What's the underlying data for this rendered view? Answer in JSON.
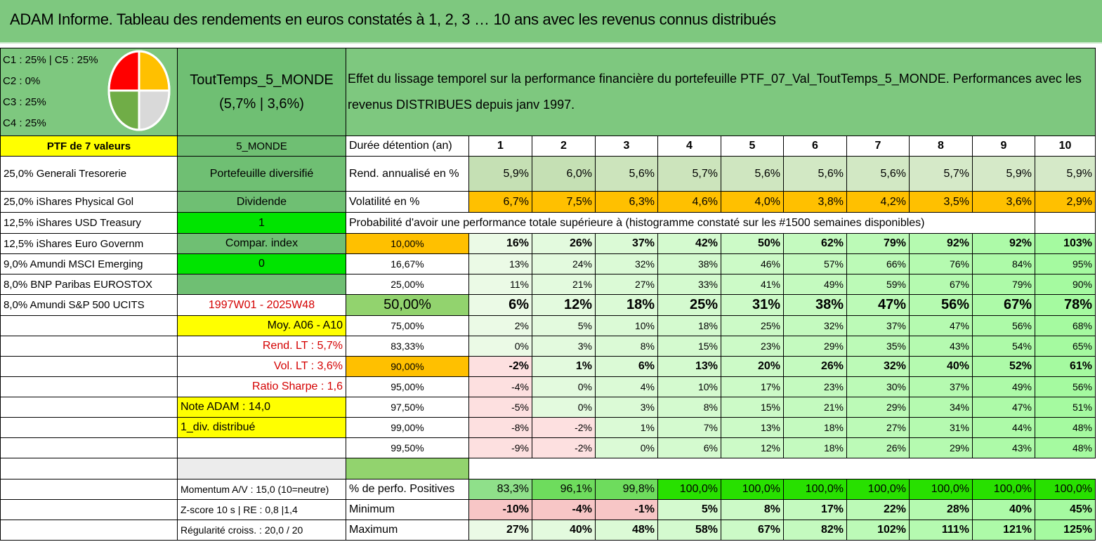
{
  "title": "ADAM Informe. Tableau des rendements en euros constatés à 1, 2, 3 … 10 ans avec les revenus connus distribués",
  "legend": [
    "C1 : 25% | C5 : 25%",
    "C2 : 0%",
    "C3 : 25%",
    "C4 : 25%"
  ],
  "pie": {
    "slices": [
      {
        "label": "C1",
        "pct": 25,
        "color": "#ffc000"
      },
      {
        "label": "C5",
        "pct": 25,
        "color": "#d9d9d9"
      },
      {
        "label": "C4",
        "pct": 25,
        "color": "#70ad47"
      },
      {
        "label": "C3",
        "pct": 25,
        "color": "#ff0000"
      }
    ]
  },
  "portfolio": {
    "name": "ToutTemps_5_MONDE",
    "stats": "(5,7% | 3,6%)"
  },
  "description": "Effet du lissage temporel sur la performance financière du portefeuille PTF_07_Val_ToutTemps_5_MONDE. Performances avec les revenus DISTRIBUES depuis janv 1997.",
  "ptf_header": "PTF de 7 valeurs",
  "holdings": [
    "25,0% Generali Tresorerie",
    "25,0% iShares Physical Gol",
    "12,5% iShares USD Treasury",
    "12,5% iShares Euro Governm",
    "9,0% Amundi MSCI Emerging",
    "8,0% BNP Paribas EUROSTOX",
    "8,0% Amundi S&P 500 UCITS"
  ],
  "info": {
    "monde": "5_MONDE",
    "diversifie": "Portefeuille diversifié",
    "dividende": "Dividende",
    "val1": "1",
    "compar": "Compar. index",
    "val0": "0",
    "period": "1997W01 - 2025W48",
    "moy": "Moy. A06 - A10",
    "rend_lt": "Rend. LT : 5,7%",
    "vol_lt": "Vol. LT : 3,6%",
    "sharpe": "Ratio Sharpe : 1,6",
    "note": "Note ADAM : 14,0",
    "div": "1_div. distribué",
    "momentum": "Momentum A/V : 15,0 (10=neutre)",
    "zscore": "Z-score 10 s | RE : 0,8 |1,4",
    "regularite": "Régularité croiss. : 20,0 / 20"
  },
  "durations_label": "Durée détention (an)",
  "durations": [
    "1",
    "2",
    "3",
    "4",
    "5",
    "6",
    "7",
    "8",
    "9",
    "10"
  ],
  "rend_label": "Rend. annualisé en %",
  "rend": [
    "5,9%",
    "6,0%",
    "5,6%",
    "5,7%",
    "5,6%",
    "5,6%",
    "5,6%",
    "5,7%",
    "5,9%",
    "5,9%"
  ],
  "vol_label": "Volatilité en %",
  "vol": [
    "6,7%",
    "7,5%",
    "6,3%",
    "4,6%",
    "4,0%",
    "3,8%",
    "4,2%",
    "3,5%",
    "3,6%",
    "2,9%"
  ],
  "prob_header": "Probabilité d'avoir une performance totale supérieure à (histogramme constaté sur les #1500 semaines disponibles)",
  "prob_rows": [
    {
      "p": "10,00%",
      "v": [
        "16%",
        "26%",
        "37%",
        "42%",
        "50%",
        "62%",
        "79%",
        "92%",
        "92%",
        "103%"
      ]
    },
    {
      "p": "16,67%",
      "v": [
        "13%",
        "24%",
        "32%",
        "38%",
        "46%",
        "57%",
        "66%",
        "76%",
        "84%",
        "95%"
      ]
    },
    {
      "p": "25,00%",
      "v": [
        "11%",
        "21%",
        "27%",
        "33%",
        "41%",
        "49%",
        "59%",
        "67%",
        "79%",
        "90%"
      ]
    },
    {
      "p": "50,00%",
      "v": [
        "6%",
        "12%",
        "18%",
        "25%",
        "31%",
        "38%",
        "47%",
        "56%",
        "67%",
        "78%"
      ]
    },
    {
      "p": "75,00%",
      "v": [
        "2%",
        "5%",
        "10%",
        "18%",
        "25%",
        "32%",
        "37%",
        "47%",
        "56%",
        "68%"
      ]
    },
    {
      "p": "83,33%",
      "v": [
        "0%",
        "3%",
        "8%",
        "15%",
        "23%",
        "29%",
        "35%",
        "43%",
        "54%",
        "65%"
      ]
    },
    {
      "p": "90,00%",
      "v": [
        "-2%",
        "1%",
        "6%",
        "13%",
        "20%",
        "26%",
        "32%",
        "40%",
        "52%",
        "61%"
      ]
    },
    {
      "p": "95,00%",
      "v": [
        "-4%",
        "0%",
        "4%",
        "10%",
        "17%",
        "23%",
        "30%",
        "37%",
        "49%",
        "56%"
      ]
    },
    {
      "p": "97,50%",
      "v": [
        "-5%",
        "0%",
        "3%",
        "8%",
        "15%",
        "21%",
        "29%",
        "34%",
        "47%",
        "51%"
      ]
    },
    {
      "p": "99,00%",
      "v": [
        "-8%",
        "-2%",
        "1%",
        "7%",
        "13%",
        "18%",
        "27%",
        "31%",
        "44%",
        "48%"
      ]
    },
    {
      "p": "99,50%",
      "v": [
        "-9%",
        "-2%",
        "0%",
        "6%",
        "12%",
        "18%",
        "26%",
        "29%",
        "43%",
        "48%"
      ]
    }
  ],
  "pos_label": "% de perfo. Positives",
  "pos": [
    "83,3%",
    "96,1%",
    "99,8%",
    "100,0%",
    "100,0%",
    "100,0%",
    "100,0%",
    "100,0%",
    "100,0%",
    "100,0%"
  ],
  "min_label": "Minimum",
  "min": [
    "-10%",
    "-4%",
    "-1%",
    "5%",
    "8%",
    "17%",
    "22%",
    "28%",
    "40%",
    "45%"
  ],
  "max_label": "Maximum",
  "max": [
    "27%",
    "40%",
    "48%",
    "58%",
    "67%",
    "82%",
    "102%",
    "111%",
    "121%",
    "125%"
  ]
}
